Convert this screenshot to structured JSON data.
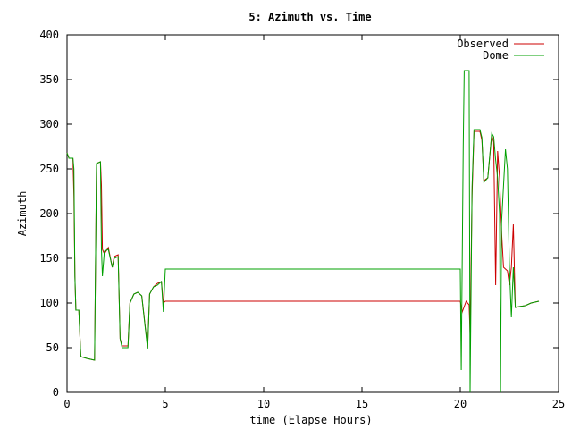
{
  "chart_data": {
    "type": "line",
    "title": "5: Azimuth vs. Time",
    "xlabel": "time (Elapse Hours)",
    "ylabel": "Azimuth",
    "xlim": [
      0,
      25
    ],
    "ylim": [
      0,
      400
    ],
    "xticks": [
      0,
      5,
      10,
      15,
      20,
      25
    ],
    "yticks": [
      0,
      50,
      100,
      150,
      200,
      250,
      300,
      350,
      400
    ],
    "grid": false,
    "legend_position": "top-right",
    "series": [
      {
        "name": "Observed",
        "color": "#cc0000",
        "points": [
          [
            0,
            268
          ],
          [
            0.1,
            262
          ],
          [
            0.3,
            262
          ],
          [
            0.35,
            220
          ],
          [
            0.4,
            130
          ],
          [
            0.45,
            92
          ],
          [
            0.6,
            92
          ],
          [
            0.7,
            40
          ],
          [
            1.0,
            38
          ],
          [
            1.2,
            37
          ],
          [
            1.4,
            36
          ],
          [
            1.5,
            256
          ],
          [
            1.7,
            258
          ],
          [
            1.75,
            232
          ],
          [
            1.8,
            160
          ],
          [
            1.9,
            155
          ],
          [
            2.1,
            162
          ],
          [
            2.3,
            140
          ],
          [
            2.4,
            152
          ],
          [
            2.6,
            154
          ],
          [
            2.7,
            60
          ],
          [
            2.8,
            52
          ],
          [
            3.1,
            52
          ],
          [
            3.2,
            100
          ],
          [
            3.4,
            110
          ],
          [
            3.6,
            112
          ],
          [
            3.8,
            108
          ],
          [
            4.1,
            50
          ],
          [
            4.2,
            110
          ],
          [
            4.4,
            118
          ],
          [
            4.6,
            122
          ],
          [
            4.8,
            124
          ],
          [
            4.9,
            100
          ],
          [
            5.0,
            102
          ],
          [
            20.0,
            102
          ],
          [
            20.1,
            90
          ],
          [
            20.3,
            102
          ],
          [
            20.45,
            98
          ],
          [
            20.5,
            65
          ],
          [
            20.6,
            220
          ],
          [
            20.7,
            292
          ],
          [
            21.0,
            292
          ],
          [
            21.1,
            282
          ],
          [
            21.2,
            237
          ],
          [
            21.4,
            240
          ],
          [
            21.6,
            288
          ],
          [
            21.7,
            280
          ],
          [
            21.8,
            120
          ],
          [
            21.9,
            270
          ],
          [
            22.0,
            240
          ],
          [
            22.1,
            180
          ],
          [
            22.2,
            140
          ],
          [
            22.4,
            136
          ],
          [
            22.5,
            120
          ],
          [
            22.6,
            140
          ],
          [
            22.7,
            188
          ],
          [
            22.8,
            95
          ],
          [
            23.0,
            96
          ],
          [
            23.3,
            97
          ],
          [
            23.6,
            100
          ],
          [
            24.0,
            102
          ]
        ]
      },
      {
        "name": "Dome",
        "color": "#00a000",
        "points": [
          [
            0,
            268
          ],
          [
            0.1,
            262
          ],
          [
            0.3,
            262
          ],
          [
            0.35,
            250
          ],
          [
            0.4,
            130
          ],
          [
            0.45,
            92
          ],
          [
            0.6,
            92
          ],
          [
            0.7,
            40
          ],
          [
            1.0,
            38
          ],
          [
            1.2,
            37
          ],
          [
            1.4,
            36
          ],
          [
            1.5,
            256
          ],
          [
            1.7,
            258
          ],
          [
            1.75,
            160
          ],
          [
            1.8,
            130
          ],
          [
            1.9,
            158
          ],
          [
            2.1,
            160
          ],
          [
            2.3,
            140
          ],
          [
            2.4,
            150
          ],
          [
            2.6,
            152
          ],
          [
            2.7,
            60
          ],
          [
            2.8,
            50
          ],
          [
            3.1,
            50
          ],
          [
            3.2,
            100
          ],
          [
            3.4,
            110
          ],
          [
            3.6,
            112
          ],
          [
            3.8,
            108
          ],
          [
            4.1,
            48
          ],
          [
            4.2,
            110
          ],
          [
            4.4,
            118
          ],
          [
            4.6,
            120
          ],
          [
            4.8,
            124
          ],
          [
            4.9,
            90
          ],
          [
            5.0,
            138
          ],
          [
            20.0,
            138
          ],
          [
            20.05,
            25
          ],
          [
            20.15,
            275
          ],
          [
            20.2,
            360
          ],
          [
            20.45,
            360
          ],
          [
            20.5,
            0
          ],
          [
            20.6,
            230
          ],
          [
            20.7,
            294
          ],
          [
            21.0,
            294
          ],
          [
            21.1,
            285
          ],
          [
            21.2,
            235
          ],
          [
            21.4,
            240
          ],
          [
            21.6,
            290
          ],
          [
            21.7,
            286
          ],
          [
            21.8,
            260
          ],
          [
            21.9,
            240
          ],
          [
            22.0,
            200
          ],
          [
            22.05,
            0
          ],
          [
            22.1,
            190
          ],
          [
            22.3,
            272
          ],
          [
            22.4,
            250
          ],
          [
            22.5,
            140
          ],
          [
            22.6,
            84
          ],
          [
            22.7,
            140
          ],
          [
            22.8,
            95
          ],
          [
            23.0,
            96
          ],
          [
            23.3,
            97
          ],
          [
            23.6,
            100
          ],
          [
            24.0,
            102
          ]
        ]
      }
    ]
  }
}
